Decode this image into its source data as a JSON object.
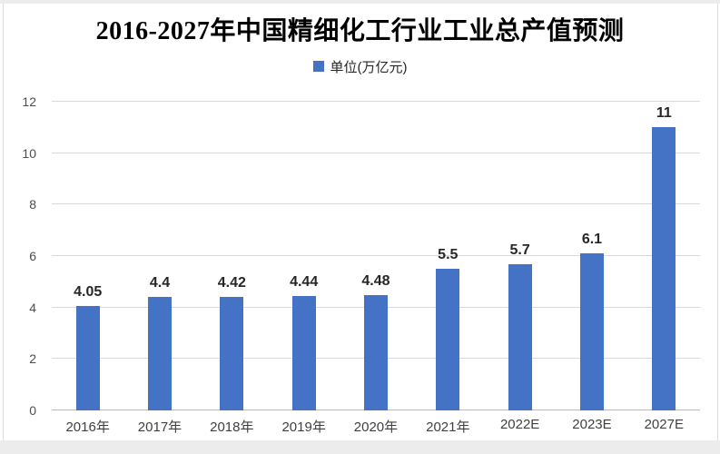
{
  "header": {
    "title": "2016-2027年中国精细化工行业工业总产值预测",
    "legend_label": "单位(万亿元)"
  },
  "chart_data": {
    "type": "bar",
    "title": "2016-2027年中国精细化工行业工业总产值预测",
    "legend": [
      "单位(万亿元)"
    ],
    "legend_position": "top",
    "categories": [
      "2016年",
      "2017年",
      "2018年",
      "2019年",
      "2020年",
      "2021年",
      "2022E",
      "2023E",
      "2027E"
    ],
    "values": [
      4.05,
      4.4,
      4.42,
      4.44,
      4.48,
      5.5,
      5.7,
      6.1,
      11
    ],
    "value_labels": [
      "4.05",
      "4.4",
      "4.42",
      "4.44",
      "4.48",
      "5.5",
      "5.7",
      "6.1",
      "11"
    ],
    "xlabel": "",
    "ylabel": "",
    "ylim": [
      0,
      12
    ],
    "yticks": [
      0,
      2,
      4,
      6,
      8,
      10,
      12
    ],
    "grid": true,
    "bar_color": "#4472c4"
  },
  "colors": {
    "bar": "#4472c4",
    "gridline": "#d9d9d9",
    "axis_line": "#b9b9b9",
    "y_tick_text": "#4d4d4d",
    "x_tick_text": "#3f3f3f",
    "value_text": "#262626",
    "frame": "#ececec"
  }
}
